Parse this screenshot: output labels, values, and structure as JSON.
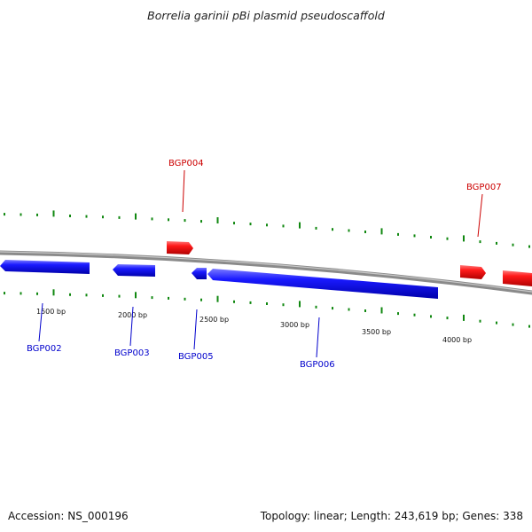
{
  "title": "Borrelia garinii pBi plasmid pseudoscaffold",
  "footer": {
    "accession": "Accession: NS_000196",
    "summary": "Topology: linear; Length: 243,619 bp; Genes: 338"
  },
  "colors": {
    "forward_gene": "#ff0000",
    "reverse_gene": "#0000ff",
    "tick": "#118811",
    "backbone": "#808080"
  },
  "scale_labels": [
    "1500 bp",
    "2000 bp",
    "2500 bp",
    "3000 bp",
    "3500 bp",
    "4000 bp"
  ],
  "genes": [
    {
      "id": "g-bgp002",
      "label": "BGP002",
      "strand": "reverse"
    },
    {
      "id": "g-bgp003",
      "label": "BGP003",
      "strand": "reverse"
    },
    {
      "id": "g-bgp004",
      "label": "BGP004",
      "strand": "forward"
    },
    {
      "id": "g-bgp005",
      "label": "BGP005",
      "strand": "reverse"
    },
    {
      "id": "g-bgp006",
      "label": "BGP006",
      "strand": "reverse"
    },
    {
      "id": "g-bgp007",
      "label": "BGP007",
      "strand": "forward"
    },
    {
      "id": "g-unlabeled",
      "label": "",
      "strand": "forward"
    }
  ]
}
